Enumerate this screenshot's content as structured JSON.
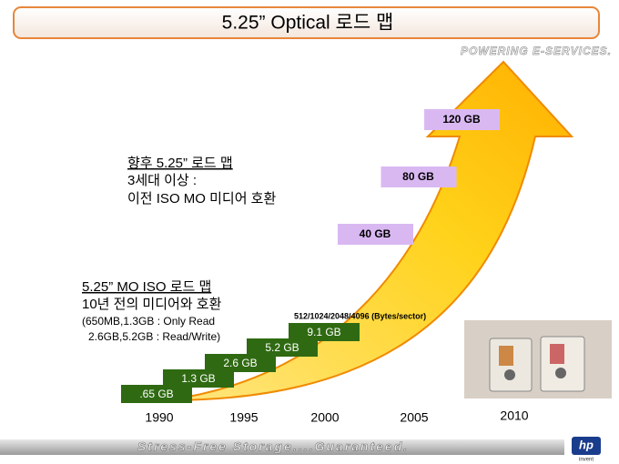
{
  "header": {
    "title": "5.25” Optical 로드 맵",
    "tagline": "POWERING E-SERVICES."
  },
  "future_note": {
    "heading": "향후 5.25” 로드 맵",
    "lines": [
      "3세대 이상 :",
      "이전 ISO MO 미디어 호환"
    ]
  },
  "iso_note": {
    "heading": "5.25” MO ISO 로드 맵",
    "line": "10년 전의 미디어와 호환",
    "details": [
      "(650MB,1.3GB : Only Read",
      "2.6GB,5.2GB : Read/Write)"
    ]
  },
  "steps": [
    ".65 GB",
    "1.3 GB",
    "2.6 GB",
    "5.2 GB",
    "9.1 GB"
  ],
  "sector_note": "512/1024/2048/4096 (Bytes/sector)",
  "future_boxes": [
    "40 GB",
    "80 GB",
    "120 GB"
  ],
  "years": [
    "1990",
    "1995",
    "2000",
    "2005",
    "2010"
  ],
  "footer": {
    "slogan": "Stress-Free Storage....Guaranteed.",
    "logo": "hp",
    "logo_sub": "invent"
  }
}
